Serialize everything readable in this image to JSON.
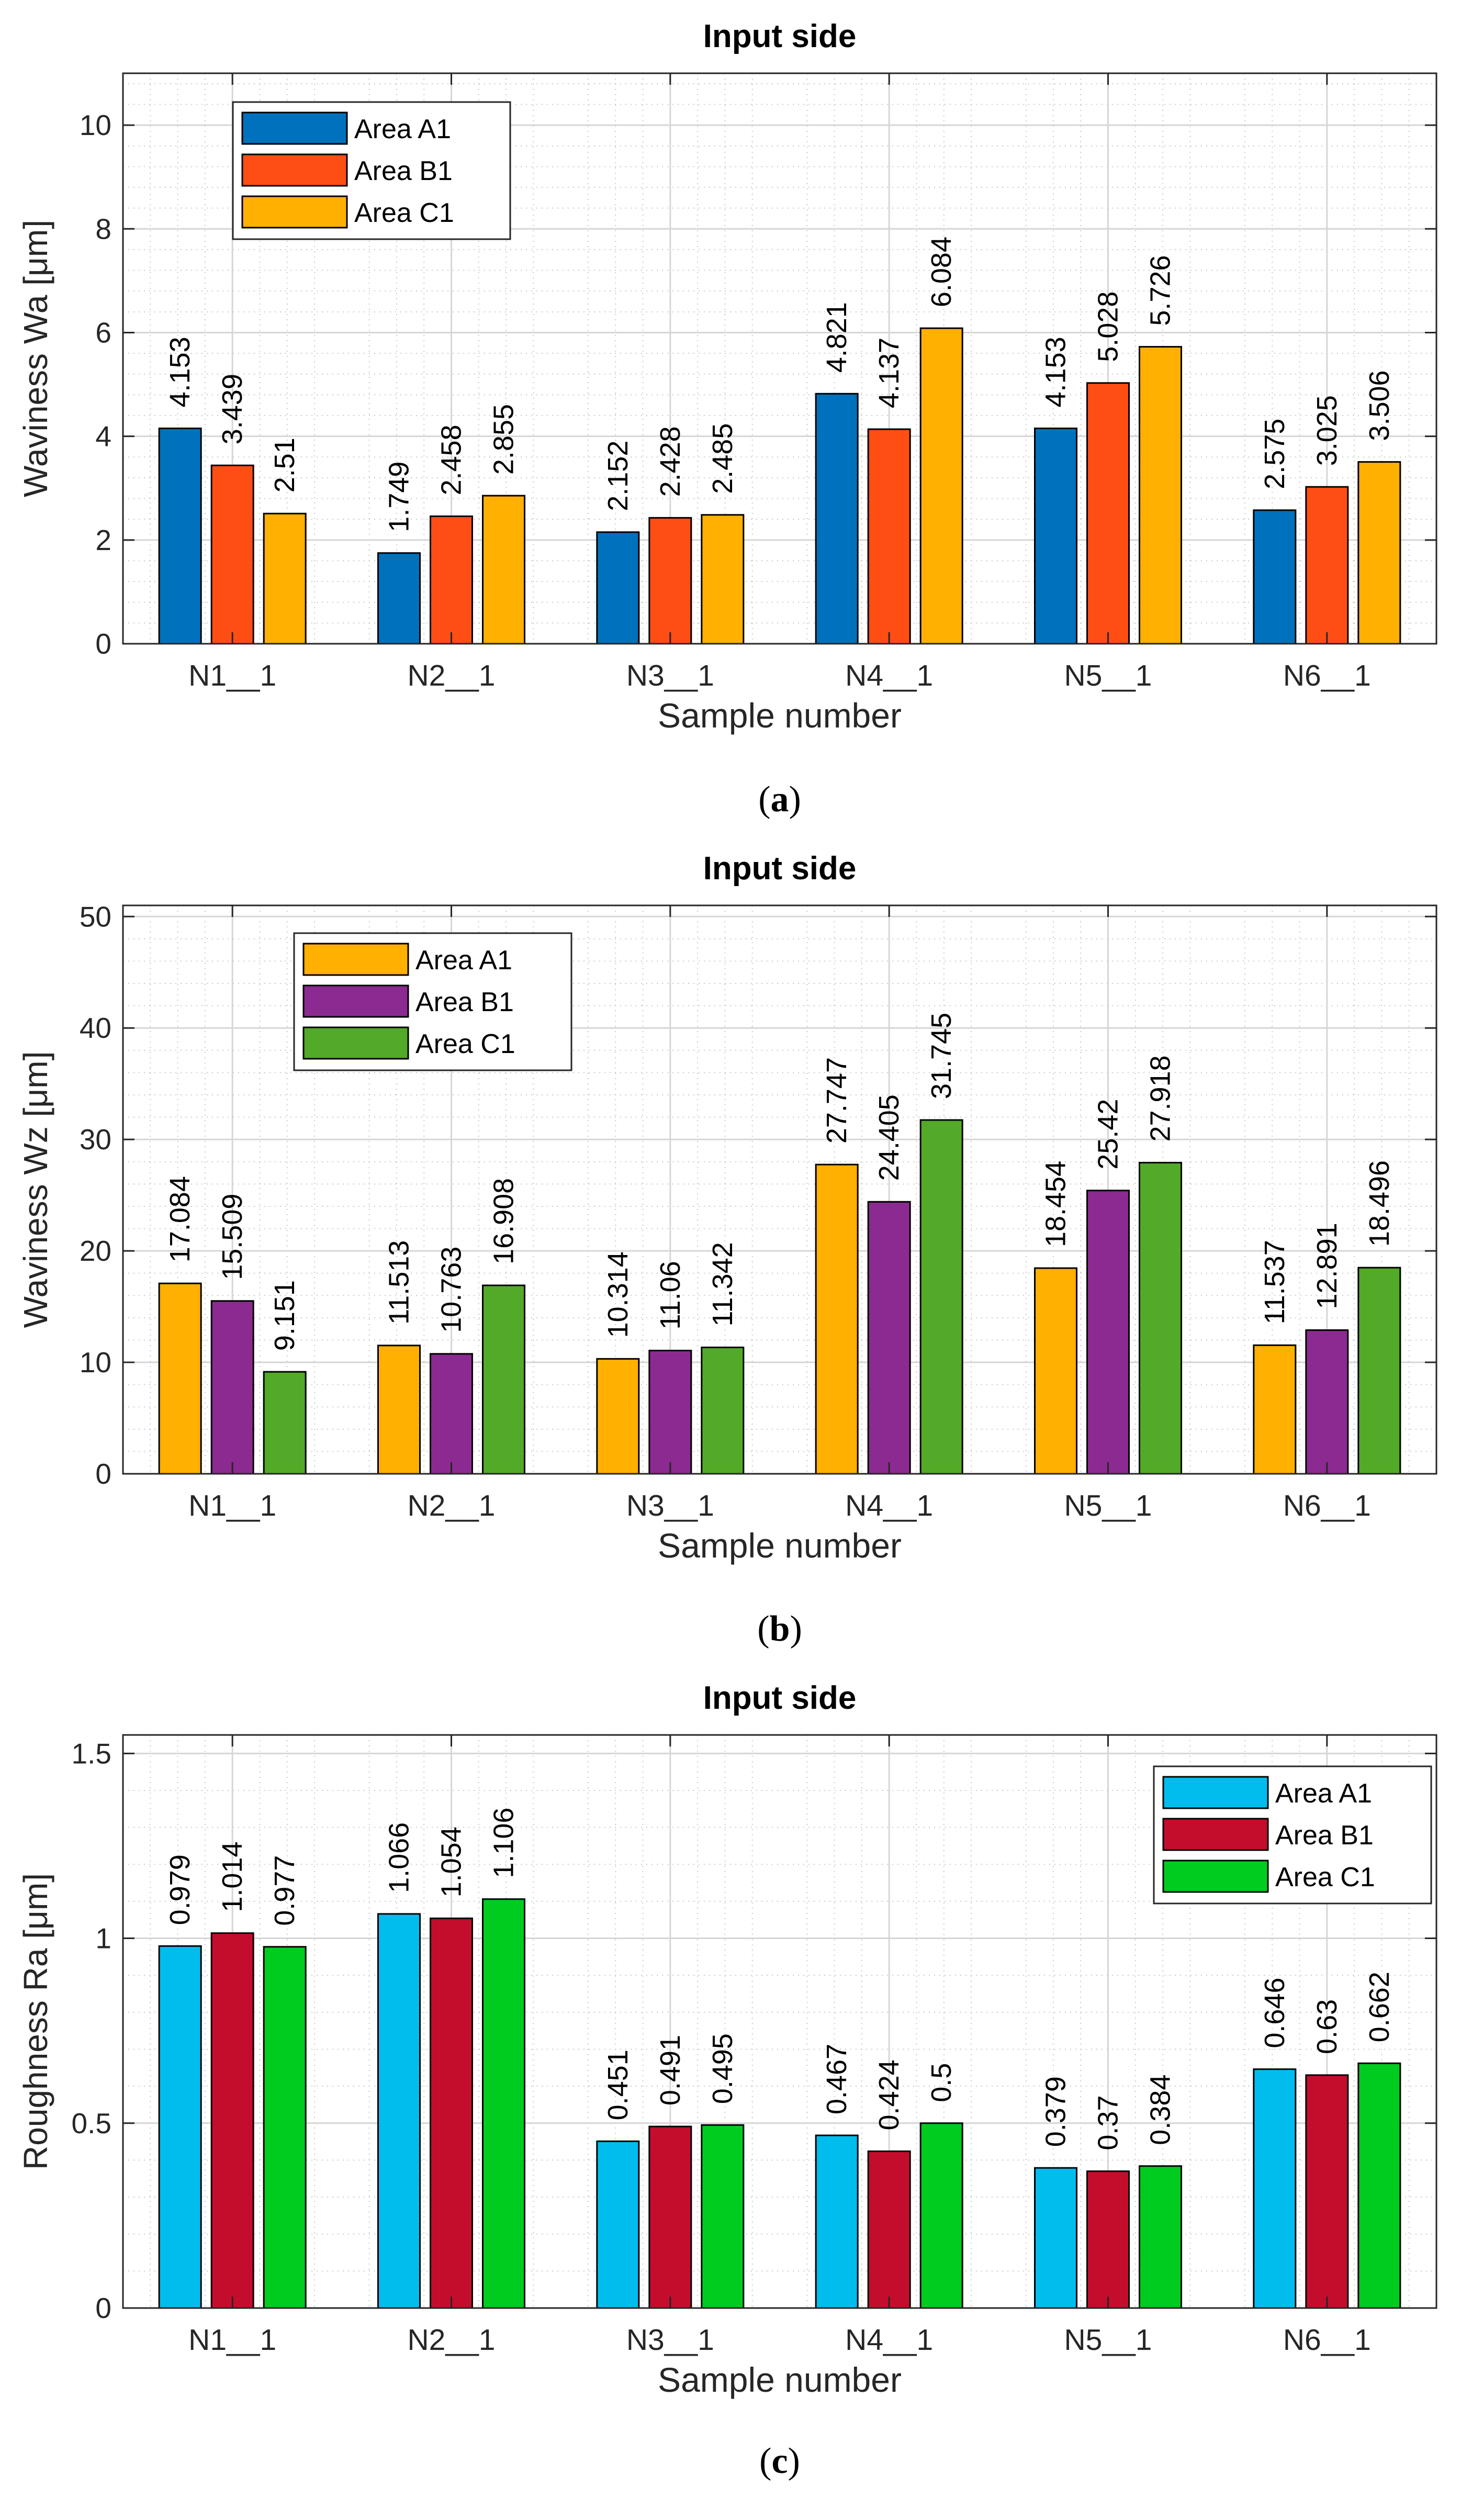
{
  "chart_data": [
    {
      "type": "bar",
      "title": "Input side",
      "xlabel": "Sample number",
      "ylabel": "Waviness Wa [μm]",
      "caption_letter": "a",
      "categories": [
        "N1__1",
        "N2__1",
        "N3__1",
        "N4__1",
        "N5__1",
        "N6__1"
      ],
      "ylim": [
        0,
        11
      ],
      "yticks": [
        0,
        2,
        4,
        6,
        8,
        10
      ],
      "grid": true,
      "legend_position": "top-left",
      "series": [
        {
          "name": "Area A1",
          "color": "#0072bd",
          "values": [
            4.153,
            1.749,
            2.152,
            4.821,
            4.153,
            2.575
          ],
          "labels": [
            "4.153",
            "1.749",
            "2.152",
            "4.821",
            "4.153",
            "2.575"
          ]
        },
        {
          "name": "Area B1",
          "color": "#ff4e14",
          "values": [
            3.439,
            2.458,
            2.428,
            4.137,
            5.028,
            3.025
          ],
          "labels": [
            "3.439",
            "2.458",
            "2.428",
            "4.137",
            "5.028",
            "3.025"
          ]
        },
        {
          "name": "Area C1",
          "color": "#ffb000",
          "values": [
            2.51,
            2.855,
            2.485,
            6.084,
            5.726,
            3.506
          ],
          "labels": [
            "2.51",
            "2.855",
            "2.485",
            "6.084",
            "5.726",
            "3.506"
          ]
        }
      ]
    },
    {
      "type": "bar",
      "title": "Input side",
      "xlabel": "Sample number",
      "ylabel": "Waviness Wz [μm]",
      "caption_letter": "b",
      "categories": [
        "N1__1",
        "N2__1",
        "N3__1",
        "N4__1",
        "N5__1",
        "N6__1"
      ],
      "ylim": [
        0,
        51
      ],
      "yticks": [
        0,
        10,
        20,
        30,
        40,
        50
      ],
      "grid": true,
      "legend_position": "top-left",
      "series": [
        {
          "name": "Area A1",
          "color": "#ffb000",
          "values": [
            17.084,
            11.513,
            10.314,
            27.747,
            18.454,
            11.537
          ],
          "labels": [
            "17.084",
            "11.513",
            "10.314",
            "27.747",
            "18.454",
            "11.537"
          ]
        },
        {
          "name": "Area B1",
          "color": "#8b2a90",
          "values": [
            15.509,
            10.763,
            11.06,
            24.405,
            25.42,
            12.891
          ],
          "labels": [
            "15.509",
            "10.763",
            "11.06",
            "24.405",
            "25.42",
            "12.891"
          ]
        },
        {
          "name": "Area C1",
          "color": "#53a928",
          "values": [
            9.151,
            16.908,
            11.342,
            31.745,
            27.918,
            18.496
          ],
          "labels": [
            "9.151",
            "16.908",
            "11.342",
            "31.745",
            "27.918",
            "18.496"
          ]
        }
      ]
    },
    {
      "type": "bar",
      "title": "Input side",
      "xlabel": "Sample number",
      "ylabel": "Roughness Ra [μm]",
      "caption_letter": "c",
      "categories": [
        "N1__1",
        "N2__1",
        "N3__1",
        "N4__1",
        "N5__1",
        "N6__1"
      ],
      "ylim": [
        0,
        1.55
      ],
      "yticks": [
        0,
        0.5,
        1,
        1.5
      ],
      "ytick_labels": [
        "0",
        "0.5",
        "1",
        "1.5"
      ],
      "grid": true,
      "legend_position": "top-right",
      "series": [
        {
          "name": "Area A1",
          "color": "#00bdee",
          "values": [
            0.979,
            1.066,
            0.451,
            0.467,
            0.379,
            0.646
          ],
          "labels": [
            "0.979",
            "1.066",
            "0.451",
            "0.467",
            "0.379",
            "0.646"
          ]
        },
        {
          "name": "Area B1",
          "color": "#c40d2d",
          "values": [
            1.014,
            1.054,
            0.491,
            0.424,
            0.37,
            0.63
          ],
          "labels": [
            "1.014",
            "1.054",
            "0.491",
            "0.424",
            "0.37",
            "0.63"
          ]
        },
        {
          "name": "Area C1",
          "color": "#00cc20",
          "values": [
            0.977,
            1.106,
            0.495,
            0.5,
            0.384,
            0.662
          ],
          "labels": [
            "0.977",
            "1.106",
            "0.495",
            "0.5",
            "0.384",
            "0.662"
          ]
        }
      ]
    }
  ]
}
